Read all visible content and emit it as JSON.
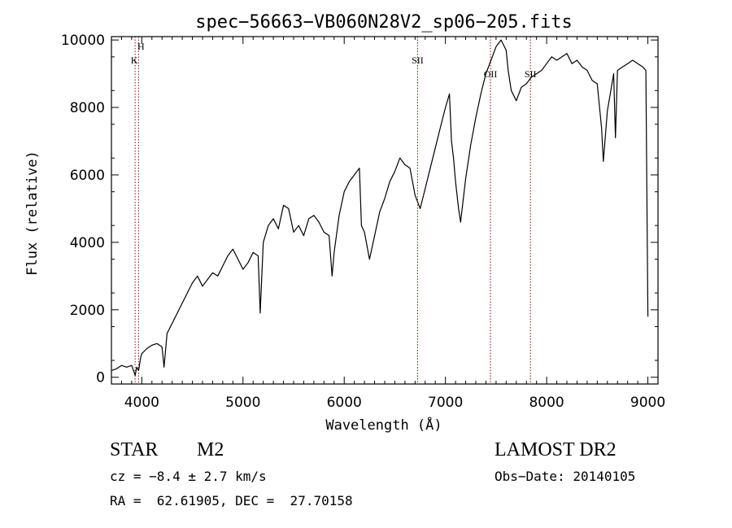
{
  "chart_data": {
    "type": "line",
    "title": "spec−56663−VB060N28V2_sp06−205.fits",
    "xlabel": "Wavelength (Å)",
    "ylabel": "Flux (relative)",
    "xlim": [
      3700,
      9100
    ],
    "ylim": [
      -200,
      10100
    ],
    "xticks": [
      4000,
      5000,
      6000,
      7000,
      8000,
      9000
    ],
    "yticks": [
      0,
      2000,
      4000,
      6000,
      8000,
      10000
    ],
    "grid": false,
    "lines": [
      {
        "label": "H",
        "x": 3968
      },
      {
        "label": "K",
        "x": 3934
      },
      {
        "label": "SII",
        "x": 6725
      },
      {
        "label": "OII",
        "x": 7445
      },
      {
        "label": "SII",
        "x": 7840
      }
    ],
    "series": [
      {
        "x": [
          3700,
          3750,
          3800,
          3850,
          3900,
          3930,
          3934,
          3950,
          3968,
          3990,
          4000,
          4050,
          4100,
          4150,
          4200,
          4220,
          4250,
          4300,
          4350,
          4400,
          4450,
          4500,
          4550,
          4600,
          4650,
          4700,
          4750,
          4800,
          4850,
          4900,
          4950,
          5000,
          5050,
          5100,
          5150,
          5170,
          5200,
          5250,
          5300,
          5350,
          5400,
          5450,
          5500,
          5550,
          5600,
          5650,
          5700,
          5750,
          5800,
          5850,
          5880,
          5900,
          5950,
          6000,
          6050,
          6100,
          6150,
          6170,
          6200,
          6250,
          6300,
          6350,
          6400,
          6450,
          6500,
          6550,
          6600,
          6650,
          6700,
          6750,
          6800,
          6850,
          6900,
          6950,
          7000,
          7040,
          7060,
          7080,
          7100,
          7130,
          7150,
          7200,
          7250,
          7300,
          7350,
          7400,
          7450,
          7500,
          7550,
          7600,
          7620,
          7650,
          7700,
          7750,
          7800,
          7850,
          7900,
          7950,
          8000,
          8050,
          8100,
          8150,
          8200,
          8250,
          8300,
          8350,
          8400,
          8450,
          8500,
          8542,
          8560,
          8600,
          8662,
          8680,
          8700,
          8750,
          8800,
          8850,
          8900,
          8950,
          8980,
          9000
        ],
        "y": [
          200,
          250,
          350,
          300,
          350,
          100,
          50,
          300,
          200,
          600,
          700,
          850,
          950,
          1000,
          900,
          300,
          1300,
          1600,
          1900,
          2200,
          2500,
          2800,
          3000,
          2700,
          2900,
          3100,
          3000,
          3300,
          3600,
          3800,
          3500,
          3200,
          3400,
          3700,
          3600,
          1900,
          4000,
          4500,
          4700,
          4400,
          5100,
          5000,
          4300,
          4500,
          4200,
          4700,
          4800,
          4600,
          4300,
          4200,
          3000,
          3700,
          4800,
          5500,
          5800,
          6000,
          6200,
          4500,
          4300,
          3500,
          4200,
          4900,
          5300,
          5800,
          6100,
          6500,
          6300,
          6200,
          5400,
          5000,
          5600,
          6200,
          6800,
          7400,
          8000,
          8400,
          7000,
          6500,
          5800,
          5000,
          4600,
          5900,
          6900,
          7700,
          8400,
          9000,
          9400,
          9800,
          10000,
          9700,
          9100,
          8500,
          8200,
          8600,
          8700,
          8900,
          9000,
          9100,
          9300,
          9500,
          9400,
          9500,
          9600,
          9300,
          9400,
          9200,
          9100,
          8800,
          8700,
          7400,
          6400,
          7900,
          9000,
          7100,
          9100,
          9200,
          9300,
          9400,
          9300,
          9200,
          9100,
          1800
        ]
      }
    ]
  },
  "footer": {
    "object_type": "STAR",
    "subclass": "M2",
    "survey": "LAMOST DR2",
    "redshift": "cz = −8.4 ± 2.7 km/s",
    "obs_date": "Obs−Date: 20140105",
    "coords": "RA =  62.61905, DEC =  27.70158"
  }
}
